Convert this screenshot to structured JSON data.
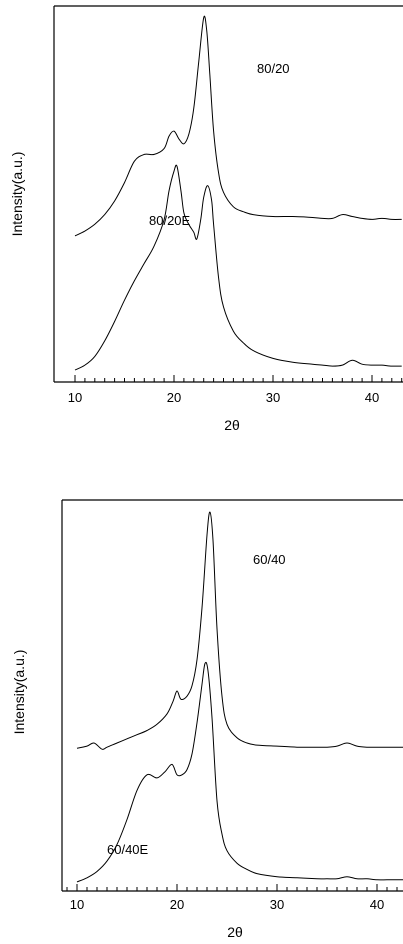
{
  "chart_data": [
    {
      "type": "line",
      "xlabel": "2θ",
      "ylabel": "Intensity(a.u.)",
      "xlim": [
        10,
        43
      ],
      "x_ticks": [
        10,
        20,
        30,
        40
      ],
      "series": [
        {
          "name": "80/20",
          "x": [
            10,
            11,
            12,
            13,
            14,
            15,
            16,
            17,
            18,
            19,
            19.5,
            20,
            20.5,
            21,
            21.5,
            22,
            22.5,
            23,
            23.3,
            23.6,
            24,
            24.5,
            25,
            26,
            27,
            28,
            30,
            32,
            34,
            35,
            36,
            37,
            38,
            39,
            40,
            41,
            42,
            43
          ],
          "y": [
            0.3,
            0.35,
            0.42,
            0.52,
            0.66,
            0.85,
            1.07,
            1.14,
            1.14,
            1.2,
            1.33,
            1.38,
            1.3,
            1.25,
            1.35,
            1.62,
            2.1,
            2.55,
            2.42,
            2.0,
            1.38,
            0.95,
            0.75,
            0.6,
            0.55,
            0.52,
            0.5,
            0.5,
            0.49,
            0.48,
            0.48,
            0.52,
            0.5,
            0.48,
            0.47,
            0.48,
            0.47,
            0.47
          ]
        },
        {
          "name": "80/20E",
          "x": [
            10,
            11,
            12,
            13,
            14,
            15,
            16,
            17,
            18,
            19,
            19.5,
            20,
            20.3,
            20.7,
            21,
            21.5,
            22,
            22.3,
            22.7,
            23,
            23.4,
            23.8,
            24,
            24.5,
            25,
            26,
            27,
            28,
            30,
            32,
            34,
            35,
            36,
            37,
            38,
            39,
            40,
            41,
            42,
            43
          ],
          "y": [
            0.0,
            0.05,
            0.14,
            0.3,
            0.5,
            0.72,
            0.92,
            1.1,
            1.28,
            1.55,
            1.85,
            2.05,
            2.1,
            1.85,
            1.62,
            1.5,
            1.42,
            1.35,
            1.55,
            1.78,
            1.9,
            1.75,
            1.5,
            0.95,
            0.65,
            0.4,
            0.28,
            0.2,
            0.12,
            0.08,
            0.06,
            0.05,
            0.04,
            0.05,
            0.1,
            0.06,
            0.05,
            0.05,
            0.04,
            0.04
          ]
        }
      ]
    },
    {
      "type": "line",
      "xlabel": "2θ",
      "ylabel": "Intensity(a.u.)",
      "xlim": [
        9,
        43
      ],
      "x_ticks": [
        10,
        20,
        30,
        40
      ],
      "series": [
        {
          "name": "60/40",
          "x": [
            10,
            11,
            11.7,
            12.5,
            13,
            14,
            15,
            16,
            17,
            18,
            19,
            19.6,
            20,
            20.4,
            21,
            21.5,
            22,
            22.5,
            23,
            23.3,
            23.6,
            24,
            24.5,
            25,
            26,
            27,
            28,
            30,
            32,
            34,
            35,
            36,
            37,
            38,
            39,
            40,
            41,
            42,
            43
          ],
          "y": [
            0.45,
            0.47,
            0.5,
            0.44,
            0.46,
            0.5,
            0.54,
            0.58,
            0.62,
            0.68,
            0.78,
            0.9,
            1.0,
            0.92,
            0.95,
            1.05,
            1.3,
            1.8,
            2.5,
            2.72,
            2.45,
            1.6,
            0.95,
            0.68,
            0.55,
            0.5,
            0.48,
            0.47,
            0.46,
            0.46,
            0.46,
            0.47,
            0.5,
            0.47,
            0.46,
            0.46,
            0.46,
            0.46,
            0.46
          ]
        },
        {
          "name": "60/40E",
          "x": [
            10,
            11,
            12,
            13,
            14,
            15,
            16,
            17,
            18,
            18.8,
            19.5,
            20,
            20.5,
            21,
            21.5,
            22,
            22.5,
            22.8,
            23.1,
            23.5,
            24,
            24.5,
            25,
            26,
            27,
            28,
            30,
            32,
            34,
            35,
            36,
            37,
            38,
            39,
            40,
            41,
            42,
            43
          ],
          "y": [
            0.02,
            0.06,
            0.12,
            0.22,
            0.38,
            0.62,
            0.9,
            1.05,
            1.02,
            1.08,
            1.15,
            1.05,
            1.05,
            1.1,
            1.25,
            1.55,
            1.92,
            2.12,
            2.05,
            1.6,
            0.8,
            0.48,
            0.32,
            0.2,
            0.14,
            0.1,
            0.07,
            0.06,
            0.05,
            0.05,
            0.05,
            0.07,
            0.05,
            0.05,
            0.04,
            0.04,
            0.04,
            0.04
          ]
        }
      ]
    }
  ]
}
